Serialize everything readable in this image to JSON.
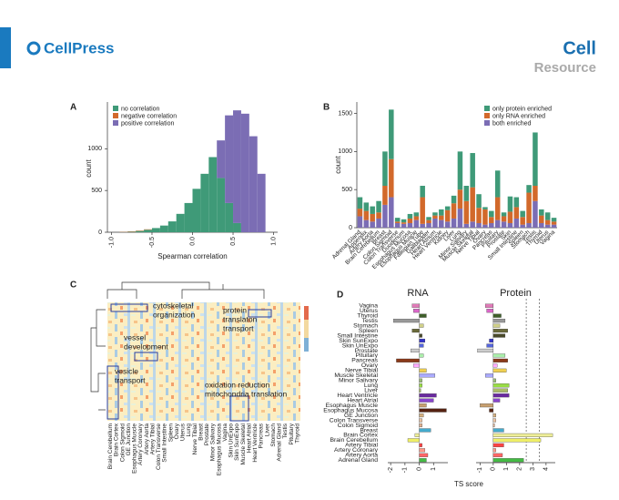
{
  "header": {
    "brand": "CellPress",
    "journal": "Cell",
    "section": "Resource"
  },
  "panels": [
    "A",
    "B",
    "C",
    "D"
  ],
  "heatmap": {
    "clusters": [
      [
        "cytoskeletal",
        "organization"
      ],
      [
        "protein",
        "translaton",
        "transport"
      ],
      [
        "vessel",
        "development"
      ],
      [
        "vesicle",
        "transport"
      ],
      [
        "oxidation reduction",
        "mitochondria translation"
      ]
    ],
    "columns": [
      "Brain Cerebellum",
      "Brain Cortex",
      "Colon Sigmoid",
      "GE Junction",
      "Esophagus Muscle",
      "Artery Coronary",
      "Artery Aorta",
      "Artery Tibial",
      "Colon Transverse",
      "Small Intestine",
      "Spleen",
      "Ovary",
      "Uterus",
      "Lung",
      "Nerve Tibial",
      "Breast",
      "Prostate",
      "Minor Salivary",
      "Esophagus Mucosa",
      "Vagina",
      "Skin UnExpo",
      "Skin SunExpo",
      "Muscle Skeletal",
      "Heart Atrial",
      "Heart Ventricle",
      "Pancreas",
      "Liver",
      "Stomach",
      "Adrenal Gland",
      "Testis",
      "Pituitary",
      "Thyroid"
    ]
  },
  "chart_data": [
    {
      "type": "histogram",
      "xlabel": "Spearman correlation",
      "ylabel": "count",
      "bins": [
        -0.9,
        -0.8,
        -0.7,
        -0.6,
        -0.5,
        -0.4,
        -0.3,
        -0.2,
        -0.1,
        0.0,
        0.1,
        0.2,
        0.3,
        0.4,
        0.5,
        0.6,
        0.7,
        0.8,
        0.9
      ],
      "series": [
        {
          "name": "no correlation",
          "color": "#3f9a78",
          "values": [
            2,
            5,
            15,
            30,
            50,
            80,
            130,
            220,
            350,
            520,
            700,
            900,
            650,
            350,
            110,
            0,
            0,
            0
          ]
        },
        {
          "name": "negative correlation",
          "color": "#d2692b",
          "values": [
            3,
            5,
            5,
            5,
            0,
            0,
            0,
            0,
            0,
            0,
            0,
            0,
            0,
            0,
            0,
            0,
            0,
            0
          ]
        },
        {
          "name": "positive correlation",
          "color": "#7b6db4",
          "values": [
            0,
            0,
            0,
            0,
            0,
            0,
            0,
            0,
            0,
            0,
            0,
            0,
            450,
            1050,
            1350,
            1420,
            1150,
            700
          ]
        }
      ],
      "xlim": [
        -1.05,
        1.05
      ],
      "xticks": [
        {
          "value": -1,
          "label": "-1.0"
        },
        -0.5,
        {
          "value": 0,
          "label": "0.0"
        },
        0.5,
        {
          "value": 1,
          "label": "1.0"
        }
      ],
      "ylim": [
        0,
        1560
      ],
      "yticks": [
        0,
        500,
        1000
      ]
    },
    {
      "type": "stacked_bar",
      "ylabel": "count",
      "categories": [
        "Adrenal Gland",
        "Appendix",
        "Artery Aorta",
        "Brain Cerebellum",
        "Breast",
        "Colon Sigmoid",
        "Colon Transverse",
        "Duodenum",
        "Esophagus Mucosa",
        "Esophagus Muscle",
        "Fallopian Tube",
        "Gallbladder",
        "Heart Atrium",
        "Heart Ventricle",
        "Kidney",
        "Liver",
        "Lung",
        "Minor Salivary",
        "Muscle Skeletal",
        "Nerve Tibial",
        "Ovary",
        "Pancreas",
        "Pituitary",
        "Prostate",
        "Skin",
        "Small Intestine",
        "Spleen",
        "Stomach",
        "Testis",
        "Thyroid",
        "Uterus",
        "Vagina"
      ],
      "series": [
        {
          "name": "only protein enriched",
          "color": "#3f9a78",
          "values": [
            150,
            110,
            100,
            150,
            450,
            650,
            50,
            40,
            60,
            50,
            150,
            40,
            40,
            80,
            50,
            100,
            500,
            200,
            450,
            180,
            30,
            80,
            350,
            50,
            200,
            130,
            80,
            100,
            700,
            80,
            100,
            50
          ]
        },
        {
          "name": "only RNA enriched",
          "color": "#d2692b",
          "values": [
            100,
            120,
            100,
            80,
            250,
            500,
            20,
            20,
            60,
            50,
            350,
            40,
            40,
            60,
            150,
            200,
            250,
            300,
            450,
            200,
            200,
            80,
            300,
            70,
            150,
            150,
            100,
            400,
            200,
            100,
            60,
            40
          ]
        },
        {
          "name": "both enriched",
          "color": "#7b6db4",
          "values": [
            150,
            100,
            80,
            120,
            300,
            400,
            60,
            50,
            60,
            100,
            50,
            60,
            120,
            100,
            80,
            120,
            250,
            50,
            80,
            60,
            40,
            60,
            100,
            80,
            60,
            120,
            40,
            60,
            350,
            60,
            40,
            40
          ]
        }
      ],
      "ylim": [
        0,
        1650
      ],
      "yticks": [
        0,
        500,
        1000,
        1500
      ]
    },
    {
      "type": "barh",
      "title": "RNA",
      "xlabel": "TS score",
      "categories": [
        "Vagina",
        "Uterus",
        "Thyroid",
        "Testis",
        "Stomach",
        "Spleen",
        "Small Intestine",
        "Skin SunExpo",
        "Skin UnExpo",
        "Prostate",
        "Pituitary",
        "Pancreas",
        "Ovary",
        "Nerve Tibial",
        "Muscle Skeletal",
        "Minor Salivary",
        "Lung",
        "Liver",
        "Heart Ventricle",
        "Heart Atrial",
        "Esophagus Muscle",
        "Esophagus Mucosa",
        "GE Junction",
        "Colon Transverse",
        "Colon Sigmoid",
        "Breast",
        "Brain Cortex",
        "Brain Cerebellum",
        "Artery Tibial",
        "Artery Coronary",
        "Artery Aorta",
        "Adrenal Gland"
      ],
      "colors": [
        "#e07ab8",
        "#d966c8",
        "#3f5f2a",
        "#999999",
        "#cfcf88",
        "#6a6a3a",
        "#4a4a2a",
        "#3333cc",
        "#5566dd",
        "#cccccc",
        "#aaeeaa",
        "#8b3a1a",
        "#ffaaff",
        "#f0d050",
        "#aaaaff",
        "#99bb77",
        "#99dd44",
        "#aabb66",
        "#6a2aa0",
        "#8844cc",
        "#c8a070",
        "#552211",
        "#d4b080",
        "#e8c0a0",
        "#e0b090",
        "#44aacc",
        "#eeee99",
        "#eeee66",
        "#ff4444",
        "#ff9988",
        "#ff6666",
        "#44bb44"
      ],
      "values": [
        -0.5,
        -0.4,
        0.5,
        -1.8,
        0.3,
        -0.5,
        0.2,
        0.4,
        0.3,
        -0.6,
        0.3,
        -1.6,
        -0.4,
        0.5,
        1.1,
        0.2,
        0.2,
        0.1,
        1.2,
        1.0,
        0.5,
        1.9,
        0.3,
        0.2,
        0.2,
        0.8,
        -0.3,
        -0.8,
        0.2,
        0.4,
        0.6,
        0.5
      ],
      "xlim": [
        -2.2,
        2.0
      ],
      "xticks": [
        -2,
        -1,
        0,
        1
      ]
    },
    {
      "type": "barh",
      "title": "Protein",
      "values": [
        -0.6,
        -0.5,
        0.6,
        0.9,
        0.5,
        1.1,
        0.9,
        -0.3,
        -0.5,
        -1.2,
        0.9,
        1.1,
        0.3,
        1.0,
        -0.6,
        0.2,
        1.2,
        1.1,
        1.2,
        0.5,
        -1.0,
        -0.3,
        0.2,
        0.2,
        0.1,
        0.8,
        4.5,
        3.6,
        0.8,
        0.2,
        0.7,
        2.3
      ],
      "xlim": [
        -1.3,
        4.7
      ],
      "xticks": [
        -1,
        0,
        1,
        2,
        3,
        4
      ],
      "reference_lines": [
        2.5,
        3.5
      ]
    }
  ]
}
